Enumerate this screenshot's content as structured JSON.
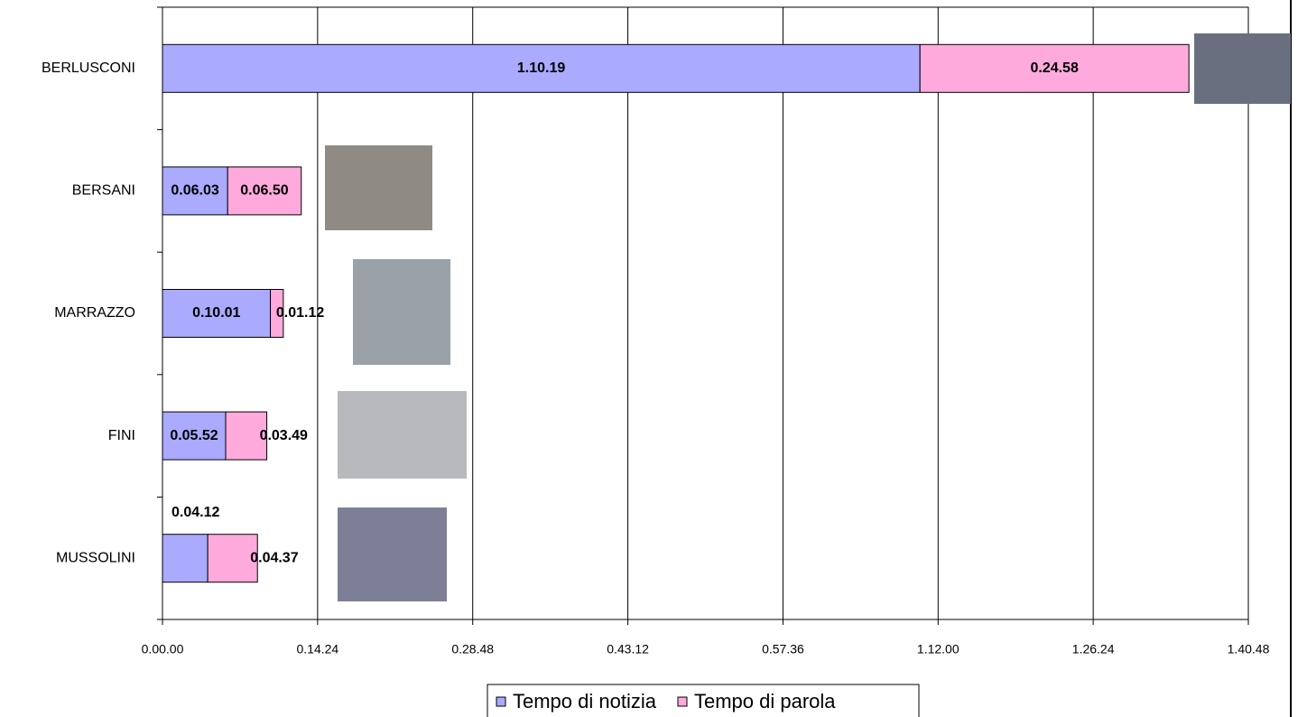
{
  "chart_data": {
    "type": "stacked-bar-horizontal",
    "categories": [
      "BERLUSCONI",
      "BERSANI",
      "MARRAZZO",
      "FINI",
      "MUSSOLINI"
    ],
    "series": [
      {
        "name": "Tempo di notizia",
        "color": "#aaaaff",
        "values": [
          4219,
          363,
          601,
          352,
          252
        ],
        "value_labels": [
          "1.10.19",
          "0.06.03",
          "0.10.01",
          "0.05.52",
          "0.04.12"
        ]
      },
      {
        "name": "Tempo di parola",
        "color": "#ffaadd",
        "values": [
          1498,
          410,
          72,
          229,
          277
        ],
        "value_labels": [
          "0.24.58",
          "0.06.50",
          "0.01.12",
          "0.03.49",
          "0.04.37"
        ]
      }
    ],
    "xlim": [
      0,
      6048
    ],
    "xticks": [
      {
        "value": 0,
        "label": "0.00.00"
      },
      {
        "value": 864,
        "label": "0.14.24"
      },
      {
        "value": 1728,
        "label": "0.28.48"
      },
      {
        "value": 2592,
        "label": "0.43.12"
      },
      {
        "value": 3456,
        "label": "0.57.36"
      },
      {
        "value": 4320,
        "label": "1.12.00"
      },
      {
        "value": 5184,
        "label": "1.26.24"
      },
      {
        "value": 6048,
        "label": "1.40.48"
      }
    ],
    "grid": true,
    "legend": "bottom"
  }
}
